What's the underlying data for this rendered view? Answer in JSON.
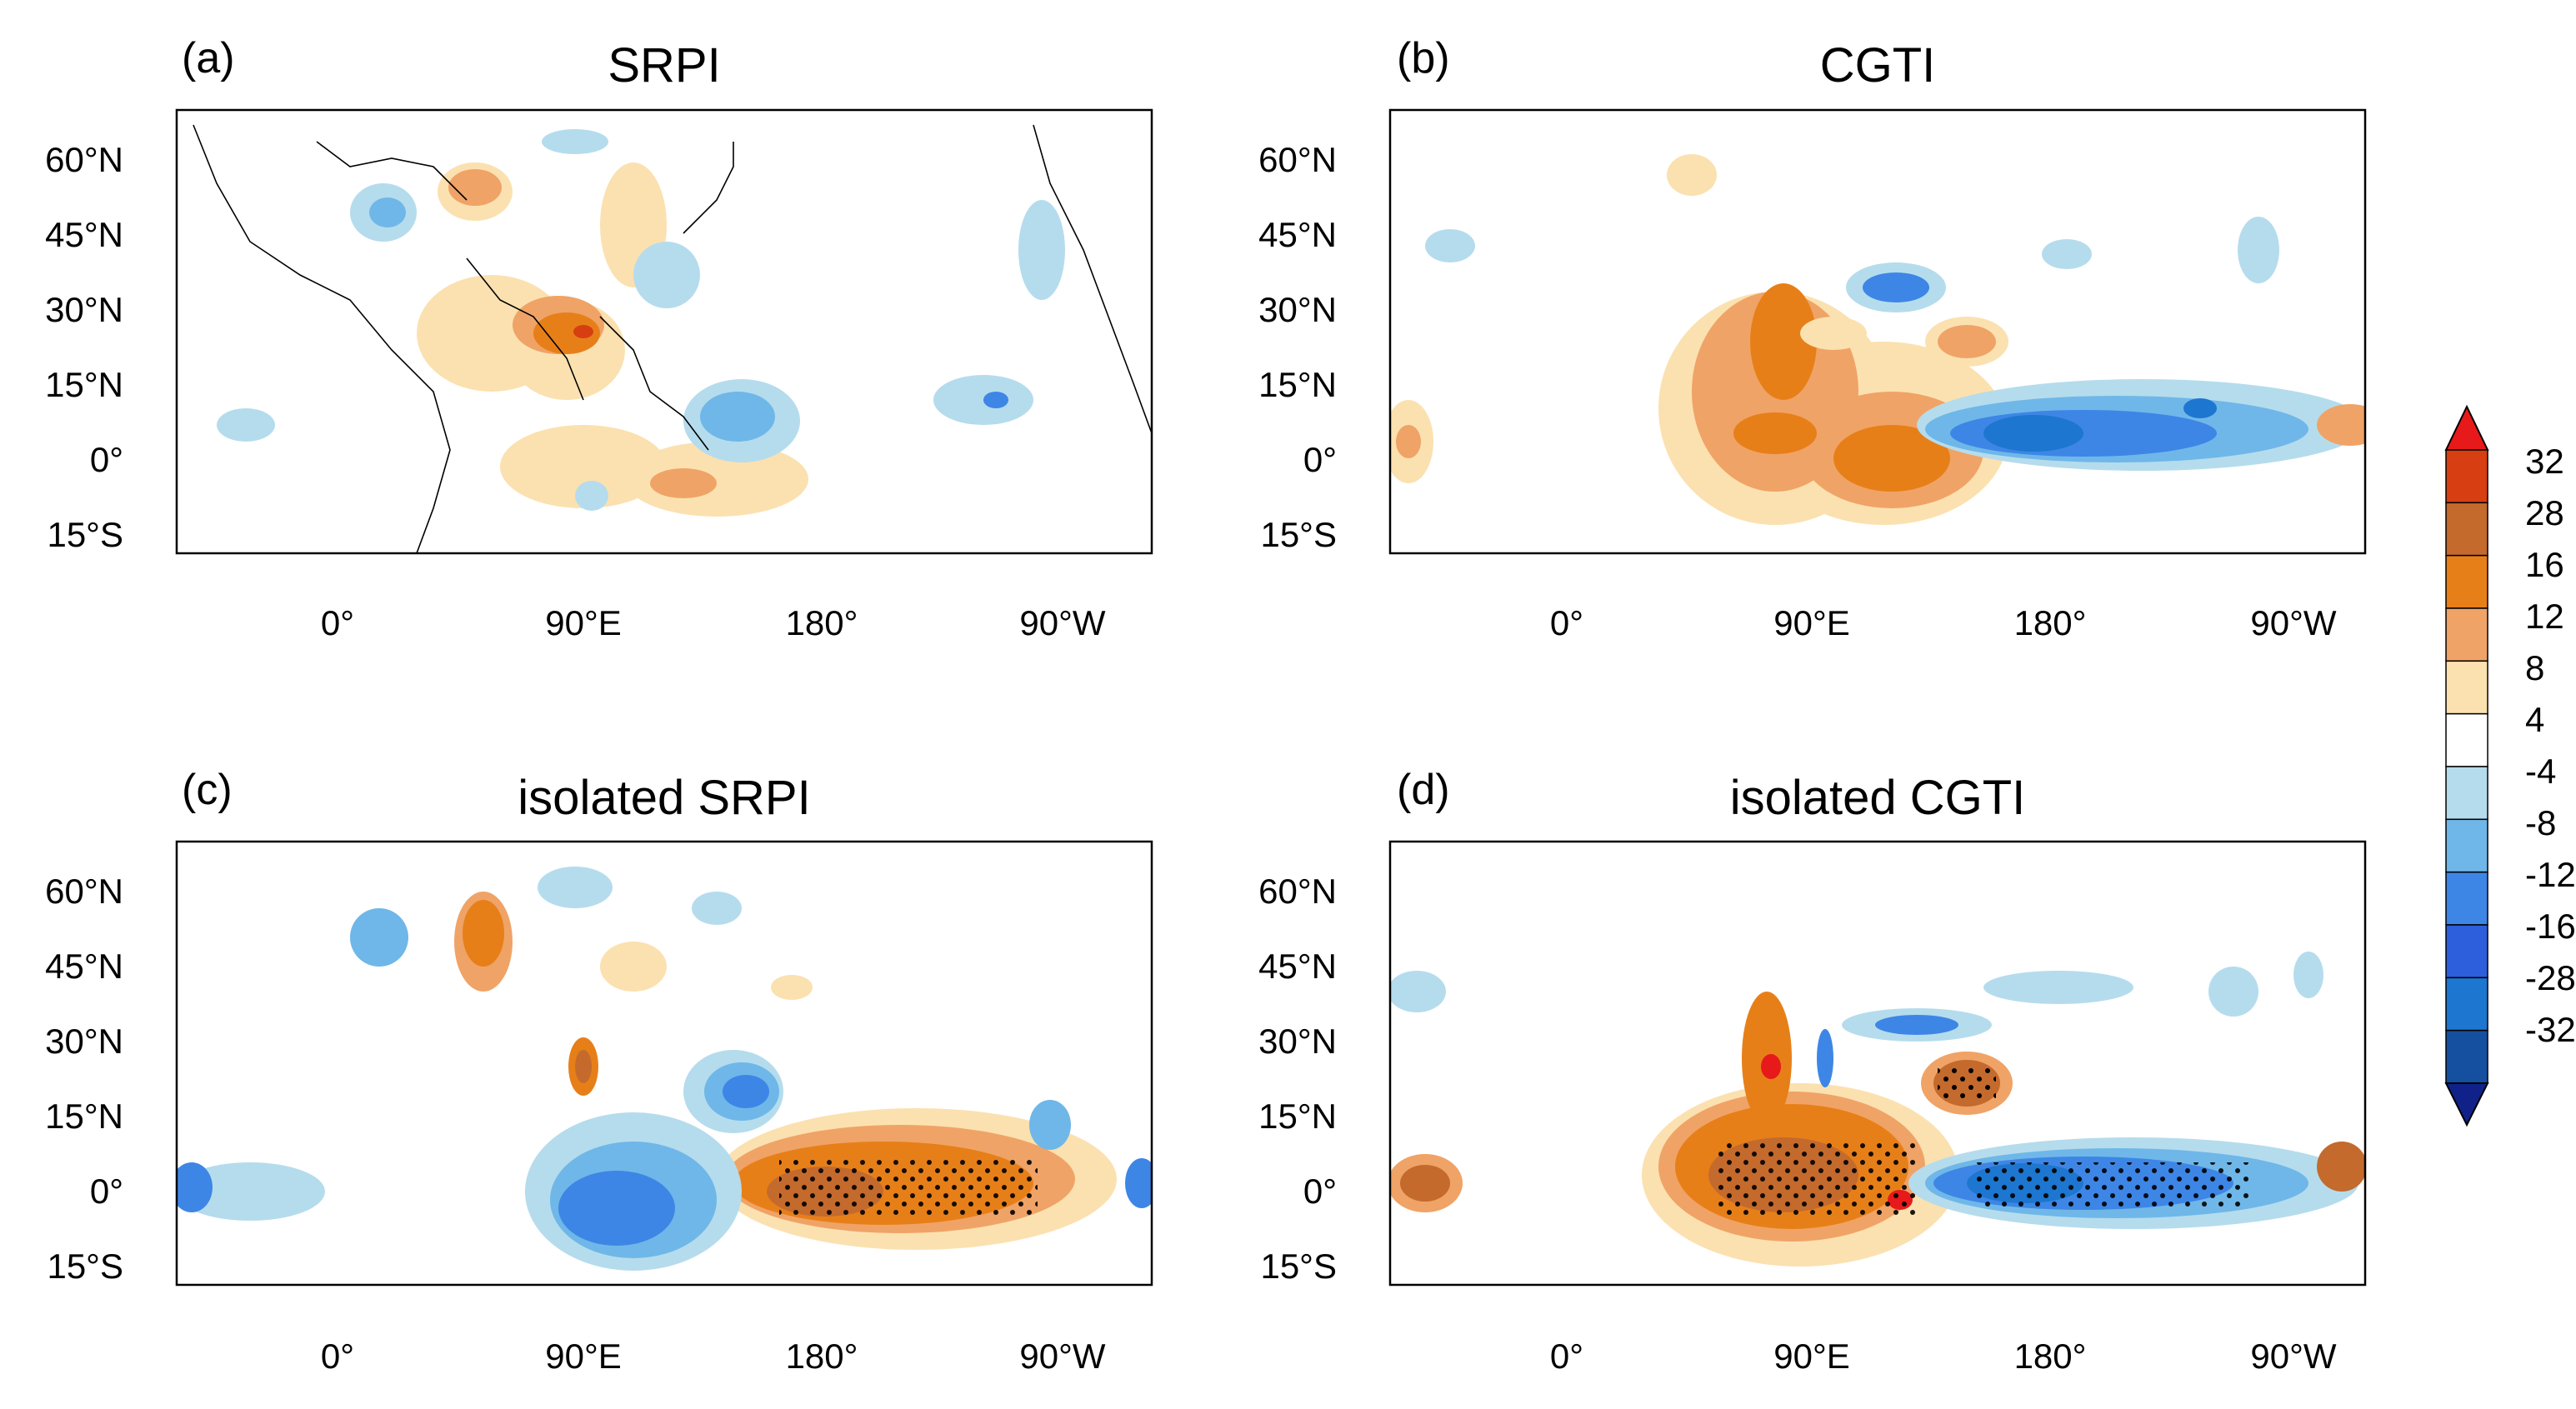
{
  "panels": [
    {
      "label": "(a)",
      "title": "SRPI"
    },
    {
      "label": "(b)",
      "title": "CGTI"
    },
    {
      "label": "(c)",
      "title": "isolated SRPI"
    },
    {
      "label": "(d)",
      "title": "isolated CGTI"
    }
  ],
  "axes": {
    "lat_labels": [
      "60°N",
      "45°N",
      "30°N",
      "15°N",
      "0°",
      "15°S"
    ],
    "lon_labels": [
      "0°",
      "90°E",
      "180°",
      "90°W"
    ]
  },
  "colorbar": {
    "labels": [
      "32",
      "28",
      "16",
      "12",
      "8",
      "4",
      "-4",
      "-8",
      "-12",
      "-16",
      "-28",
      "-32"
    ],
    "colors": [
      "#e8191a",
      "#d73e11",
      "#c46a2d",
      "#e77f19",
      "#f0a366",
      "#fbe1b0",
      "#ffffff",
      "#b5dced",
      "#6fb7e8",
      "#3d86e6",
      "#2d5edb",
      "#1d76cf",
      "#154fa0",
      "#10228a"
    ]
  }
}
